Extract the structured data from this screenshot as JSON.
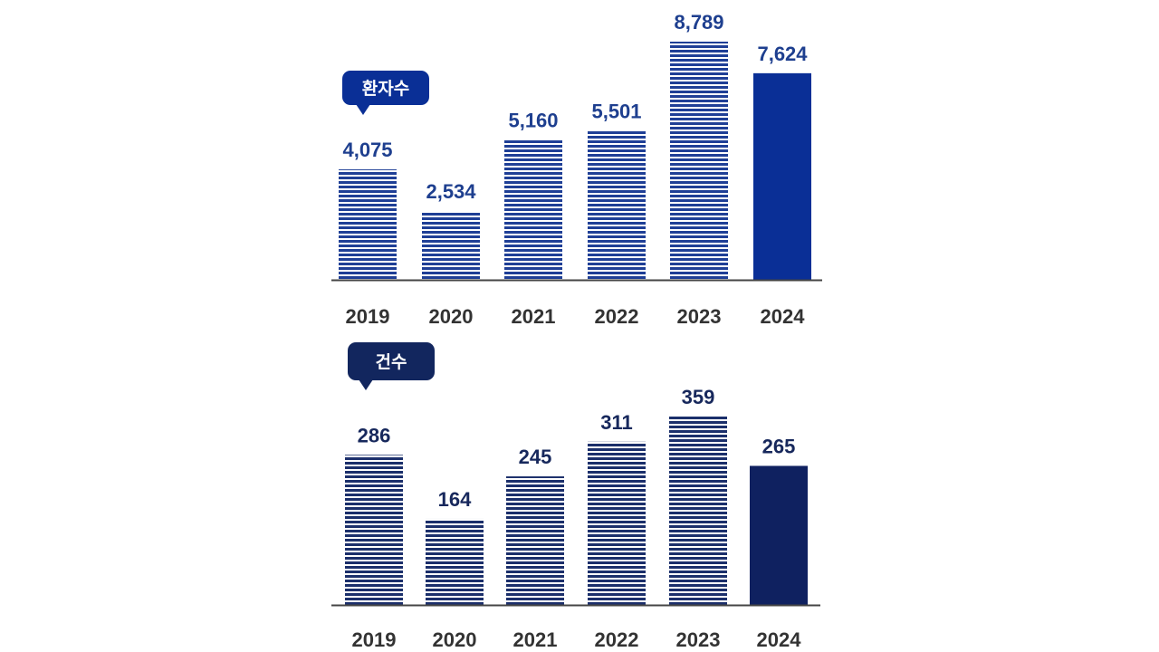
{
  "chart_data": [
    {
      "type": "bar",
      "title": "환자수",
      "categories": [
        "2019",
        "2020",
        "2021",
        "2022",
        "2023",
        "2024"
      ],
      "value_labels": [
        "4,075",
        "2,534",
        "5,160",
        "5,501",
        "8,789",
        "7,624"
      ],
      "values": [
        4075,
        2534,
        5160,
        5501,
        8789,
        7624
      ],
      "ylim": [
        0,
        8789
      ],
      "highlight_index": 5,
      "colors": {
        "bar": "#1f3f96",
        "highlight": "#0a2f96",
        "label": "#1e3f8f",
        "bubble": "#0a2f96"
      }
    },
    {
      "type": "bar",
      "title": "건수",
      "categories": [
        "2019",
        "2020",
        "2021",
        "2022",
        "2023",
        "2024"
      ],
      "value_labels": [
        "286",
        "164",
        "245",
        "311",
        "359",
        "265"
      ],
      "values": [
        286,
        164,
        245,
        311,
        359,
        265
      ],
      "ylim": [
        0,
        359
      ],
      "highlight_index": 5,
      "colors": {
        "bar": "#1b2f6b",
        "highlight": "#0f2160",
        "label": "#17285c",
        "bubble": "#12265e"
      }
    }
  ]
}
